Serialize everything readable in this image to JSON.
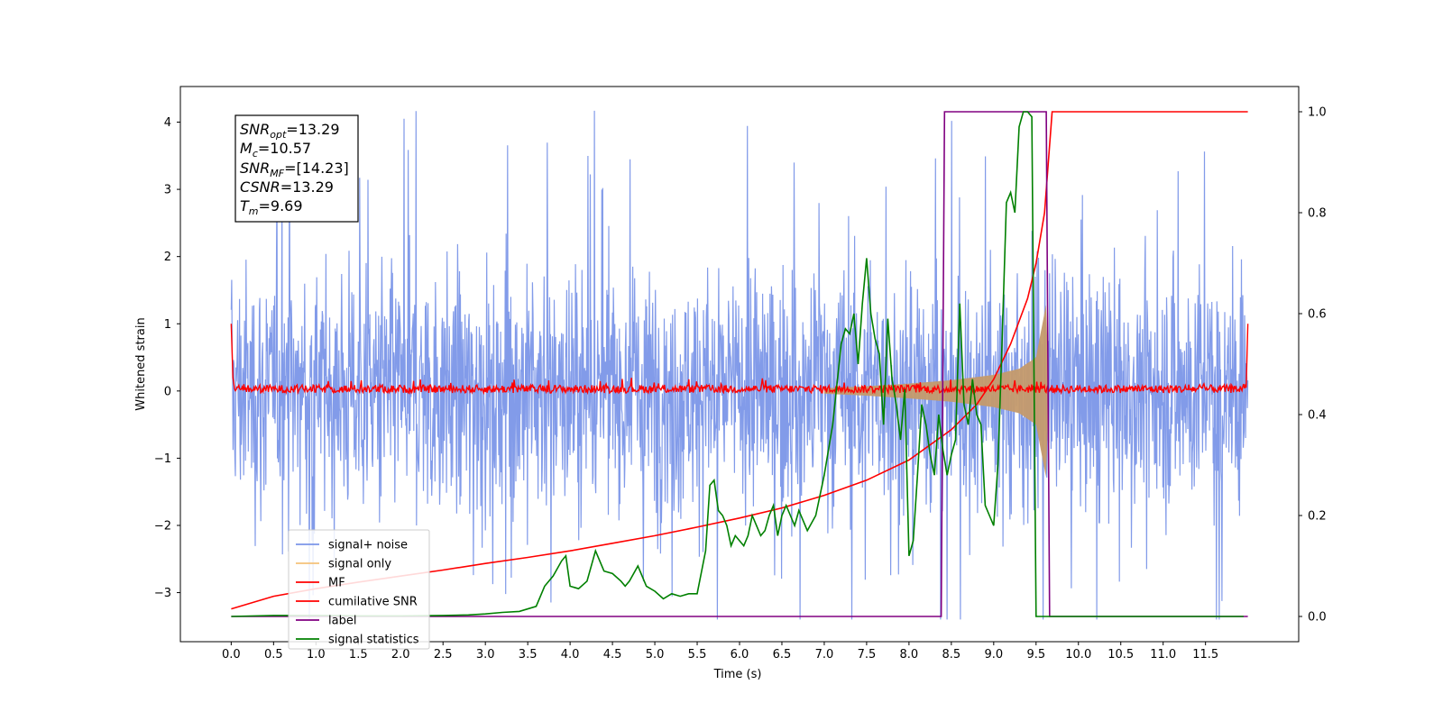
{
  "chart_data": {
    "type": "line",
    "xlabel": "Time (s)",
    "ylabel": "Whitened strain",
    "xlim": [
      -0.6,
      12.6
    ],
    "ylim": [
      -3.73,
      4.53
    ],
    "y2lim": [
      -0.05,
      1.05
    ],
    "xticks": [
      "0.0",
      "0.5",
      "1.0",
      "1.5",
      "2.0",
      "2.5",
      "3.0",
      "3.5",
      "4.0",
      "4.5",
      "5.0",
      "5.5",
      "6.0",
      "6.5",
      "7.0",
      "7.5",
      "8.0",
      "8.5",
      "9.0",
      "9.5",
      "10.0",
      "10.5",
      "11.0",
      "11.5"
    ],
    "yticks": [
      "4",
      "3",
      "2",
      "1",
      "0",
      "−1",
      "−2",
      "−3"
    ],
    "y2ticks": [
      "1.0",
      "0.8",
      "0.6",
      "0.4",
      "0.2",
      "0.0"
    ],
    "annotation": {
      "snr_opt": "=13.29",
      "mc": "=10.57",
      "snr_mf": "=[14.23]",
      "csnr": "=13.29",
      "tm": "=9.69"
    },
    "legend_position": "lower left",
    "legend": [
      {
        "label": "signal+ noise",
        "color": "#7b96e8"
      },
      {
        "label": "signal only",
        "color": "#f5c27a"
      },
      {
        "label": "MF",
        "color": "#ff0000"
      },
      {
        "label": "cumilative SNR",
        "color": "#ff0000"
      },
      {
        "label": "label",
        "color": "#800080"
      },
      {
        "label": "signal statistics",
        "color": "#008000"
      }
    ],
    "series": [
      {
        "name": "signal+ noise",
        "axis": "left",
        "description": "whitened noise, approx. range -2.5 to 2.5 with spikes to 4.2 and -3.4, t 0 to 12"
      },
      {
        "name": "signal only",
        "axis": "left",
        "envelope": {
          "t": [
            7.0,
            7.5,
            8.0,
            8.5,
            9.0,
            9.3,
            9.5,
            9.62,
            9.65
          ],
          "amp": [
            0.04,
            0.07,
            0.11,
            0.16,
            0.24,
            0.33,
            0.5,
            1.3,
            0
          ]
        }
      },
      {
        "name": "MF",
        "axis": "left",
        "description": "red noise near zero, range about -0.1 to 0.2, endpoints 1.0 at t=0 and t=12"
      },
      {
        "name": "cumilative SNR",
        "axis": "right",
        "t": [
          0,
          0.5,
          1,
          1.5,
          2,
          2.5,
          3,
          3.5,
          4,
          4.5,
          5,
          5.5,
          6,
          6.5,
          7,
          7.5,
          8,
          8.5,
          8.8,
          9,
          9.2,
          9.4,
          9.5,
          9.6,
          9.69,
          12
        ],
        "values": [
          0.015,
          0.04,
          0.055,
          0.068,
          0.08,
          0.092,
          0.105,
          0.117,
          0.13,
          0.145,
          0.16,
          0.177,
          0.195,
          0.215,
          0.24,
          0.27,
          0.31,
          0.37,
          0.42,
          0.47,
          0.54,
          0.63,
          0.7,
          0.8,
          1.0,
          1.0
        ]
      },
      {
        "name": "label",
        "axis": "right",
        "t": [
          0,
          8.38,
          8.42,
          9.62,
          9.66,
          12
        ],
        "values": [
          0,
          0,
          1,
          1,
          0,
          0
        ]
      },
      {
        "name": "signal statistics",
        "axis": "right",
        "t": [
          0,
          0.5,
          1,
          1.5,
          2,
          2.5,
          2.8,
          3.0,
          3.2,
          3.4,
          3.6,
          3.7,
          3.8,
          3.9,
          3.95,
          4.0,
          4.1,
          4.2,
          4.3,
          4.4,
          4.5,
          4.6,
          4.65,
          4.7,
          4.8,
          4.9,
          5.0,
          5.1,
          5.2,
          5.3,
          5.4,
          5.5,
          5.6,
          5.65,
          5.7,
          5.75,
          5.8,
          5.85,
          5.9,
          5.95,
          6.0,
          6.05,
          6.1,
          6.15,
          6.2,
          6.25,
          6.3,
          6.35,
          6.4,
          6.45,
          6.5,
          6.55,
          6.6,
          6.65,
          6.7,
          6.8,
          6.9,
          7.0,
          7.05,
          7.1,
          7.15,
          7.2,
          7.25,
          7.3,
          7.35,
          7.4,
          7.45,
          7.5,
          7.55,
          7.6,
          7.65,
          7.7,
          7.75,
          7.8,
          7.85,
          7.9,
          7.95,
          8.0,
          8.05,
          8.1,
          8.15,
          8.2,
          8.25,
          8.3,
          8.35,
          8.4,
          8.45,
          8.5,
          8.55,
          8.6,
          8.65,
          8.7,
          8.75,
          8.8,
          8.85,
          8.9,
          8.95,
          9.0,
          9.05,
          9.1,
          9.15,
          9.2,
          9.25,
          9.3,
          9.35,
          9.4,
          9.45,
          9.5,
          9.55,
          9.6,
          9.65,
          9.7,
          9.75,
          10.0,
          11.0,
          11.95
        ],
        "values": [
          0.0,
          0.002,
          0.002,
          0.001,
          0.001,
          0.002,
          0.003,
          0.005,
          0.008,
          0.01,
          0.02,
          0.06,
          0.08,
          0.11,
          0.12,
          0.06,
          0.055,
          0.07,
          0.13,
          0.09,
          0.085,
          0.07,
          0.06,
          0.07,
          0.1,
          0.06,
          0.05,
          0.035,
          0.045,
          0.04,
          0.045,
          0.045,
          0.13,
          0.26,
          0.27,
          0.21,
          0.2,
          0.18,
          0.14,
          0.16,
          0.15,
          0.14,
          0.16,
          0.2,
          0.18,
          0.16,
          0.17,
          0.2,
          0.22,
          0.16,
          0.2,
          0.22,
          0.2,
          0.18,
          0.21,
          0.17,
          0.2,
          0.28,
          0.33,
          0.38,
          0.46,
          0.54,
          0.57,
          0.56,
          0.6,
          0.5,
          0.62,
          0.71,
          0.6,
          0.55,
          0.52,
          0.38,
          0.59,
          0.47,
          0.42,
          0.35,
          0.45,
          0.12,
          0.15,
          0.28,
          0.42,
          0.38,
          0.32,
          0.28,
          0.4,
          0.33,
          0.28,
          0.32,
          0.35,
          0.62,
          0.42,
          0.38,
          0.47,
          0.4,
          0.38,
          0.22,
          0.2,
          0.18,
          0.3,
          0.55,
          0.82,
          0.84,
          0.8,
          0.97,
          1.0,
          1.0,
          0.99,
          0.0,
          0.0,
          0.0,
          0.0,
          0.0,
          0.0,
          0.0,
          0.0,
          0.0
        ]
      }
    ]
  }
}
